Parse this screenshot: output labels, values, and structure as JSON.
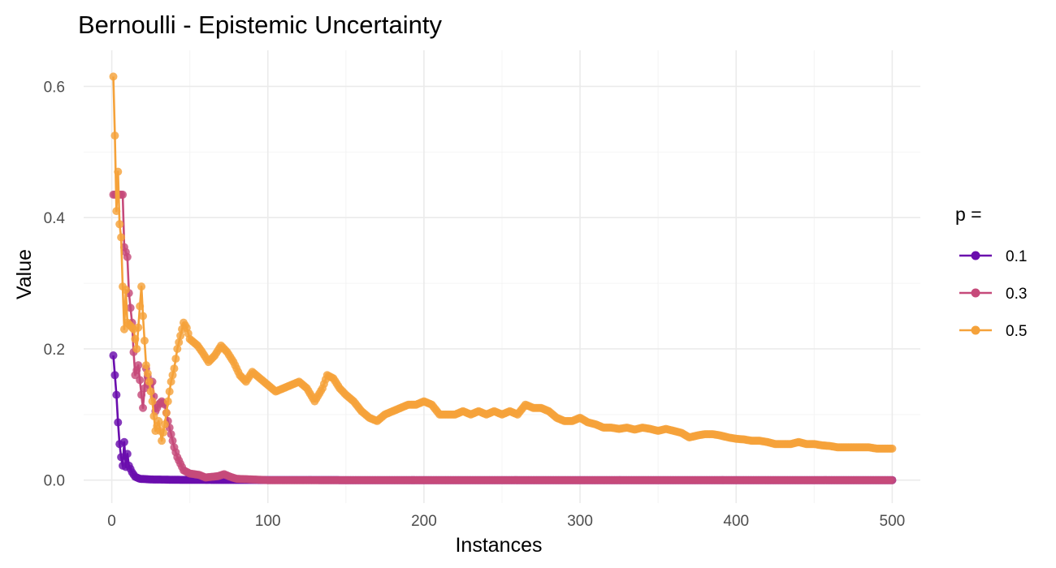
{
  "chart_data": {
    "type": "line",
    "title": "Bernoulli - Epistemic Uncertainty",
    "xlabel": "Instances",
    "ylabel": "Value",
    "xlim": [
      -18,
      518
    ],
    "ylim": [
      -0.035,
      0.655
    ],
    "x_ticks": [
      0,
      100,
      200,
      300,
      400,
      500
    ],
    "x_tick_labels": [
      "0",
      "100",
      "200",
      "300",
      "400",
      "500"
    ],
    "y_ticks": [
      0.0,
      0.2,
      0.4,
      0.6
    ],
    "y_tick_labels": [
      "0.0",
      "0.2",
      "0.4",
      "0.6"
    ],
    "grid": true,
    "markers": true,
    "legend": {
      "title": "p =",
      "position": "right"
    },
    "series": [
      {
        "name": "0.1",
        "color": "#6a0dad",
        "x_range": [
          1,
          500
        ],
        "anchors": [
          [
            1,
            0.19
          ],
          [
            3,
            0.13
          ],
          [
            4,
            0.088
          ],
          [
            5,
            0.055
          ],
          [
            6,
            0.035
          ],
          [
            7,
            0.022
          ],
          [
            8,
            0.058
          ],
          [
            9,
            0.02
          ],
          [
            10,
            0.04
          ],
          [
            11,
            0.022
          ],
          [
            13,
            0.012
          ],
          [
            15,
            0.005
          ],
          [
            18,
            0.002
          ],
          [
            25,
            0.001
          ],
          [
            40,
            0.0005
          ],
          [
            80,
            0.0002
          ],
          [
            150,
            0.0
          ],
          [
            500,
            0.0
          ]
        ]
      },
      {
        "name": "0.3",
        "color": "#c64a7a",
        "x_range": [
          1,
          500
        ],
        "anchors": [
          [
            7,
            0.435
          ],
          [
            8,
            0.355
          ],
          [
            10,
            0.34
          ],
          [
            11,
            0.285
          ],
          [
            13,
            0.24
          ],
          [
            14,
            0.195
          ],
          [
            15,
            0.16
          ],
          [
            17,
            0.175
          ],
          [
            19,
            0.13
          ],
          [
            20,
            0.11
          ],
          [
            22,
            0.17
          ],
          [
            24,
            0.145
          ],
          [
            26,
            0.15
          ],
          [
            28,
            0.105
          ],
          [
            30,
            0.115
          ],
          [
            32,
            0.12
          ],
          [
            34,
            0.115
          ],
          [
            36,
            0.09
          ],
          [
            38,
            0.07
          ],
          [
            40,
            0.05
          ],
          [
            42,
            0.035
          ],
          [
            44,
            0.025
          ],
          [
            46,
            0.015
          ],
          [
            50,
            0.01
          ],
          [
            56,
            0.008
          ],
          [
            60,
            0.004
          ],
          [
            68,
            0.006
          ],
          [
            72,
            0.009
          ],
          [
            76,
            0.005
          ],
          [
            80,
            0.002
          ],
          [
            90,
            0.001
          ],
          [
            100,
            0.0
          ],
          [
            500,
            0.0
          ]
        ]
      },
      {
        "name": "0.5",
        "color": "#f5a23a",
        "x_range": [
          1,
          500
        ],
        "anchors": [
          [
            1,
            0.615
          ],
          [
            2,
            0.525
          ],
          [
            3,
            0.41
          ],
          [
            4,
            0.47
          ],
          [
            5,
            0.39
          ],
          [
            6,
            0.37
          ],
          [
            7,
            0.295
          ],
          [
            8,
            0.23
          ],
          [
            9,
            0.29
          ],
          [
            10,
            0.24
          ],
          [
            12,
            0.235
          ],
          [
            14,
            0.23
          ],
          [
            16,
            0.2
          ],
          [
            18,
            0.265
          ],
          [
            19,
            0.295
          ],
          [
            20,
            0.25
          ],
          [
            22,
            0.175
          ],
          [
            24,
            0.15
          ],
          [
            26,
            0.12
          ],
          [
            28,
            0.075
          ],
          [
            30,
            0.09
          ],
          [
            32,
            0.06
          ],
          [
            34,
            0.085
          ],
          [
            36,
            0.12
          ],
          [
            38,
            0.15
          ],
          [
            40,
            0.17
          ],
          [
            42,
            0.2
          ],
          [
            44,
            0.22
          ],
          [
            46,
            0.24
          ],
          [
            48,
            0.232
          ],
          [
            50,
            0.215
          ],
          [
            55,
            0.205
          ],
          [
            58,
            0.195
          ],
          [
            62,
            0.18
          ],
          [
            66,
            0.19
          ],
          [
            70,
            0.205
          ],
          [
            74,
            0.195
          ],
          [
            78,
            0.18
          ],
          [
            82,
            0.16
          ],
          [
            86,
            0.15
          ],
          [
            90,
            0.165
          ],
          [
            95,
            0.155
          ],
          [
            100,
            0.145
          ],
          [
            105,
            0.135
          ],
          [
            110,
            0.14
          ],
          [
            115,
            0.145
          ],
          [
            120,
            0.15
          ],
          [
            125,
            0.14
          ],
          [
            130,
            0.12
          ],
          [
            135,
            0.14
          ],
          [
            138,
            0.16
          ],
          [
            142,
            0.155
          ],
          [
            146,
            0.14
          ],
          [
            150,
            0.13
          ],
          [
            155,
            0.12
          ],
          [
            160,
            0.105
          ],
          [
            165,
            0.095
          ],
          [
            170,
            0.09
          ],
          [
            175,
            0.1
          ],
          [
            180,
            0.105
          ],
          [
            185,
            0.11
          ],
          [
            190,
            0.115
          ],
          [
            195,
            0.115
          ],
          [
            200,
            0.12
          ],
          [
            205,
            0.115
          ],
          [
            210,
            0.1
          ],
          [
            215,
            0.1
          ],
          [
            220,
            0.1
          ],
          [
            225,
            0.105
          ],
          [
            230,
            0.1
          ],
          [
            235,
            0.105
          ],
          [
            240,
            0.1
          ],
          [
            245,
            0.105
          ],
          [
            250,
            0.1
          ],
          [
            255,
            0.105
          ],
          [
            260,
            0.1
          ],
          [
            265,
            0.115
          ],
          [
            270,
            0.11
          ],
          [
            275,
            0.11
          ],
          [
            280,
            0.105
          ],
          [
            285,
            0.095
          ],
          [
            290,
            0.09
          ],
          [
            295,
            0.09
          ],
          [
            300,
            0.095
          ],
          [
            305,
            0.088
          ],
          [
            310,
            0.085
          ],
          [
            315,
            0.08
          ],
          [
            320,
            0.08
          ],
          [
            325,
            0.078
          ],
          [
            330,
            0.08
          ],
          [
            335,
            0.077
          ],
          [
            340,
            0.08
          ],
          [
            345,
            0.078
          ],
          [
            350,
            0.075
          ],
          [
            355,
            0.078
          ],
          [
            360,
            0.075
          ],
          [
            365,
            0.072
          ],
          [
            370,
            0.065
          ],
          [
            375,
            0.068
          ],
          [
            380,
            0.07
          ],
          [
            385,
            0.07
          ],
          [
            390,
            0.068
          ],
          [
            395,
            0.065
          ],
          [
            400,
            0.063
          ],
          [
            405,
            0.062
          ],
          [
            410,
            0.06
          ],
          [
            415,
            0.06
          ],
          [
            420,
            0.058
          ],
          [
            425,
            0.055
          ],
          [
            430,
            0.055
          ],
          [
            435,
            0.055
          ],
          [
            440,
            0.058
          ],
          [
            445,
            0.055
          ],
          [
            450,
            0.055
          ],
          [
            455,
            0.053
          ],
          [
            460,
            0.052
          ],
          [
            465,
            0.05
          ],
          [
            470,
            0.05
          ],
          [
            475,
            0.05
          ],
          [
            480,
            0.05
          ],
          [
            485,
            0.05
          ],
          [
            490,
            0.048
          ],
          [
            495,
            0.048
          ],
          [
            500,
            0.048
          ]
        ]
      }
    ]
  }
}
